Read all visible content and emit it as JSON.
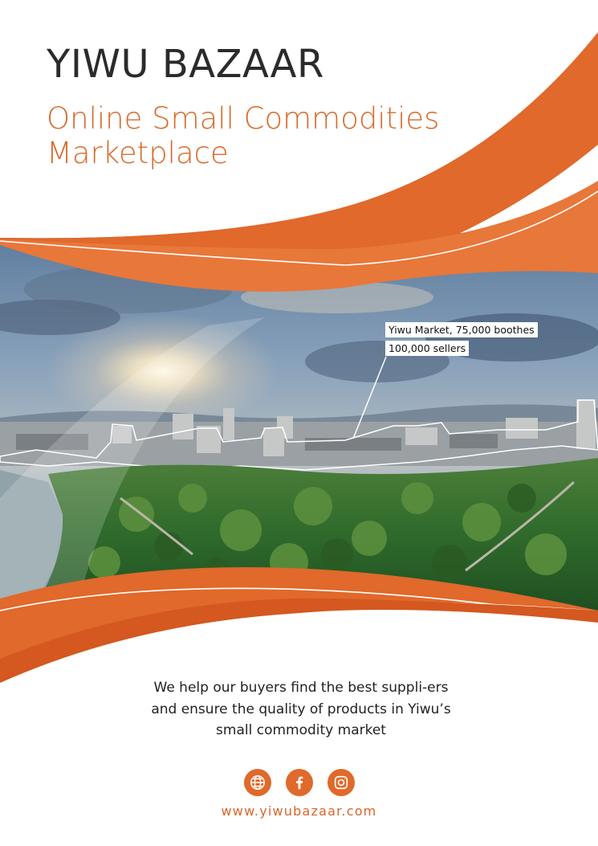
{
  "header": {
    "title": "YIWU BAZAAR",
    "subtitle_line1": "Online Small Commodities",
    "subtitle_line2": "Marketplace"
  },
  "photo": {
    "callout_line1": "Yiwu Market, 75,000 boothes",
    "callout_line2": "100,000 sellers"
  },
  "footer": {
    "tagline": "We help our buyers find the best suppli-ers and ensure the quality of products in Yiwu’s small commodity market",
    "social_icons": [
      "globe-icon",
      "facebook-icon",
      "instagram-icon"
    ],
    "website": "www.yiwubazaar.com"
  },
  "colors": {
    "accent": "#e0692b",
    "accent_dark": "#d4581f",
    "text": "#2b2b2b"
  }
}
